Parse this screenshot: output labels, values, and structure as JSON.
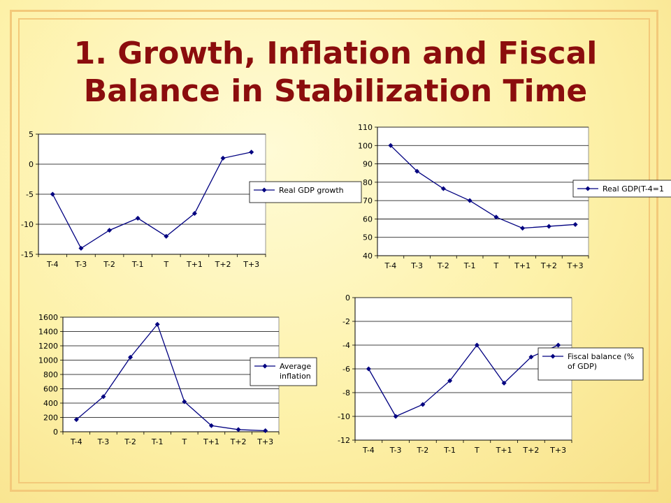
{
  "slide": {
    "title_line1": "1. Growth, Inflation and Fiscal",
    "title_line2": "Balance in Stabilization Time"
  },
  "colors": {
    "title": "#8b0d0d",
    "series": "#000080",
    "frame": "#f3c97a"
  },
  "chart_data": [
    {
      "id": "gdp-growth",
      "type": "line",
      "categories": [
        "T-4",
        "T-3",
        "T-2",
        "T-1",
        "T",
        "T+1",
        "T+2",
        "T+3"
      ],
      "series": [
        {
          "name": [
            "Real GDP growth"
          ],
          "values": [
            -5,
            -14,
            -11,
            -9,
            -12,
            -8.2,
            1,
            2
          ]
        }
      ],
      "yticks": [
        5,
        0,
        -5,
        -10,
        -15
      ],
      "ylim": [
        -15,
        5
      ],
      "grid": true,
      "legend": "right"
    },
    {
      "id": "gdp-index",
      "type": "line",
      "categories": [
        "T-4",
        "T-3",
        "T-2",
        "T-1",
        "T",
        "T+1",
        "T+2",
        "T+3"
      ],
      "series": [
        {
          "name": [
            "Real GDP(T-4=1"
          ],
          "values": [
            100,
            86,
            76.5,
            70,
            61,
            55,
            56,
            57
          ]
        }
      ],
      "yticks": [
        110,
        100,
        90,
        80,
        70,
        60,
        50,
        40
      ],
      "ylim": [
        40,
        110
      ],
      "grid": true,
      "legend": "right"
    },
    {
      "id": "inflation",
      "type": "line",
      "categories": [
        "T-4",
        "T-3",
        "T-2",
        "T-1",
        "T",
        "T+1",
        "T+2",
        "T+3"
      ],
      "series": [
        {
          "name": [
            "Average",
            "inflation"
          ],
          "values": [
            170,
            490,
            1040,
            1500,
            420,
            85,
            30,
            15
          ]
        }
      ],
      "yticks": [
        1600,
        1400,
        1200,
        1000,
        800,
        600,
        400,
        200,
        0
      ],
      "ylim": [
        0,
        1600
      ],
      "grid": true,
      "legend": "right"
    },
    {
      "id": "fiscal-balance",
      "type": "line",
      "categories": [
        "T-4",
        "T-3",
        "T-2",
        "T-1",
        "T",
        "T+1",
        "T+2",
        "T+3"
      ],
      "series": [
        {
          "name": [
            "Fiscal balance (%",
            "of GDP)"
          ],
          "values": [
            -6,
            -10,
            -9,
            -7,
            -4,
            -7.2,
            -5,
            -4
          ]
        }
      ],
      "yticks": [
        0,
        -2,
        -4,
        -6,
        -8,
        -10,
        -12
      ],
      "ylim": [
        -12,
        0
      ],
      "grid": true,
      "legend": "right"
    }
  ]
}
